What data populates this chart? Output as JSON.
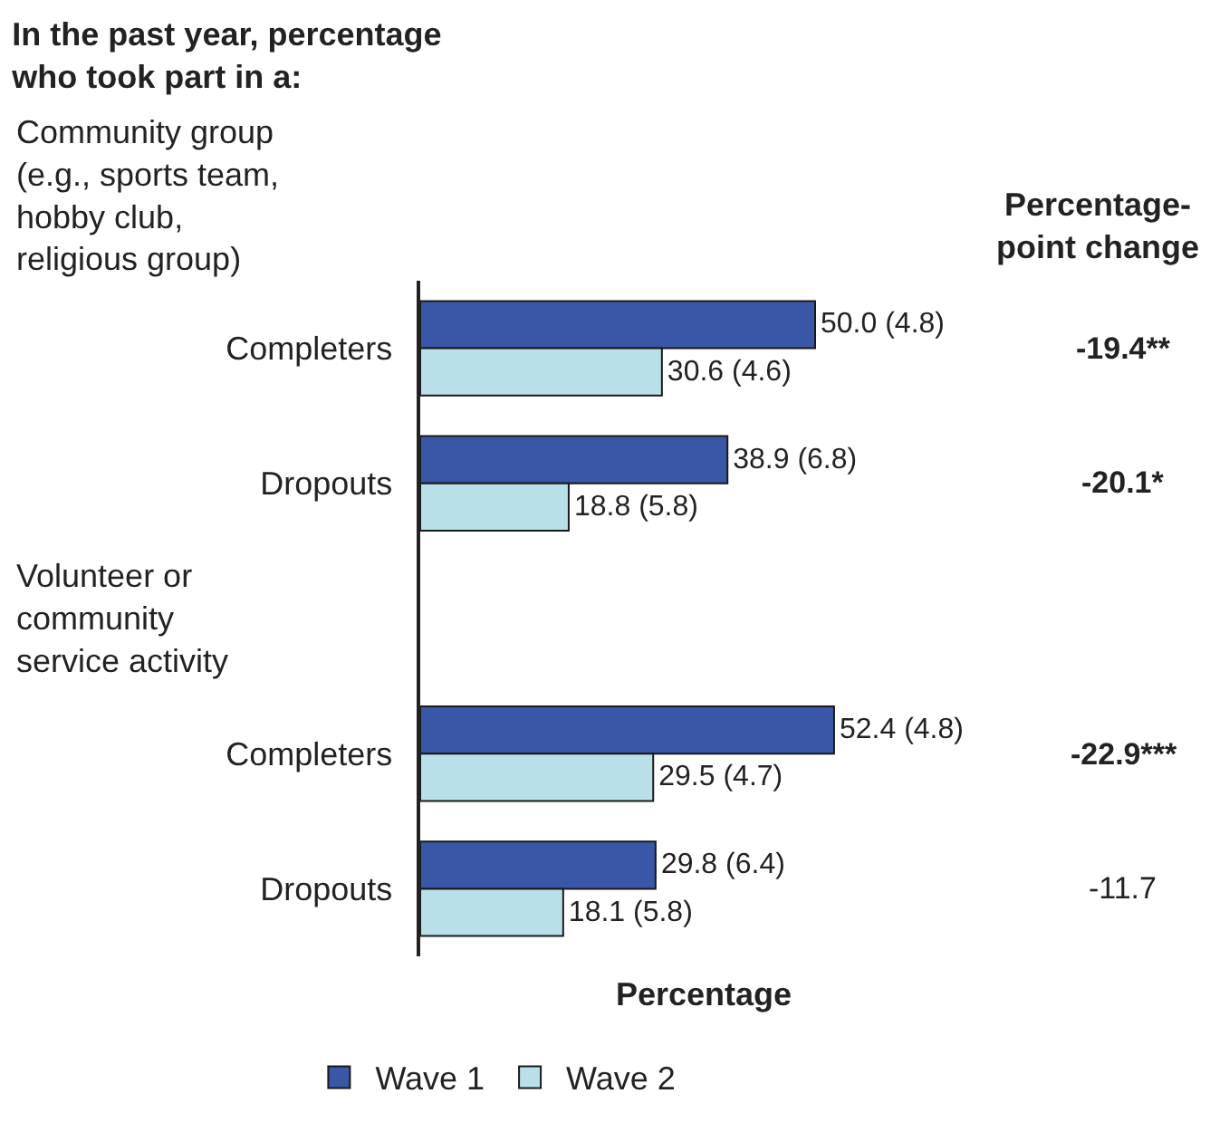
{
  "chart_data": {
    "type": "bar",
    "orientation": "horizontal",
    "title": "In the past year, percentage\nwho took part in a:",
    "xlabel": "Percentage",
    "categories": [
      "Completers",
      "Dropouts",
      null,
      "Completers",
      "Dropouts"
    ],
    "series": [
      {
        "name": "Wave 1",
        "color": "#3a56a6",
        "values": [
          50.0,
          38.9,
          null,
          52.4,
          29.8
        ],
        "value_labels": [
          "50.0 (4.8)",
          "38.9 (6.8)",
          null,
          "52.4 (4.8)",
          "29.8 (6.4)"
        ]
      },
      {
        "name": "Wave 2",
        "color": "#b9e0e8",
        "values": [
          30.6,
          18.8,
          null,
          29.5,
          18.1
        ],
        "value_labels": [
          "30.6 (4.6)",
          "18.8 (5.8)",
          null,
          "29.5 (4.7)",
          "18.1 (5.8)"
        ]
      }
    ],
    "annotations": [
      "Community group\n(e.g., sports team,\nhobby club,\nreligious group)",
      "Volunteer or\ncommunity\nservice activity",
      "-19.4**",
      "-20.1*",
      "-22.9***",
      "-11.7",
      "Percentage-\npoint change"
    ],
    "legend": "bottom",
    "tick_labels": "y"
  }
}
